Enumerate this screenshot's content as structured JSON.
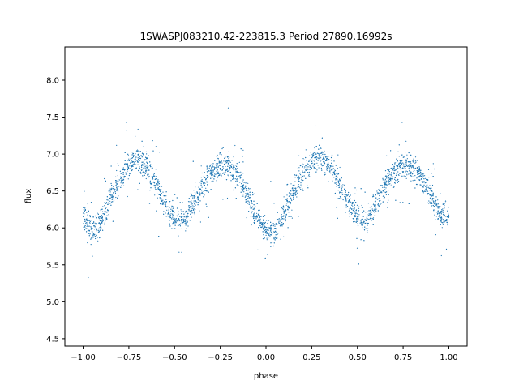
{
  "chart_data": {
    "type": "scatter",
    "title": "1SWASPJ083210.42-223815.3 Period 27890.16992s",
    "xlabel": "phase",
    "ylabel": "flux",
    "xlim": [
      -1.1,
      1.1
    ],
    "ylim": [
      4.4,
      8.45
    ],
    "xticks": [
      -1.0,
      -0.75,
      -0.5,
      -0.25,
      0.0,
      0.25,
      0.5,
      0.75,
      1.0
    ],
    "xtick_labels": [
      "−1.00",
      "−0.75",
      "−0.50",
      "−0.25",
      "0.00",
      "0.25",
      "0.50",
      "0.75",
      "1.00"
    ],
    "yticks": [
      4.5,
      5.0,
      5.5,
      6.0,
      6.5,
      7.0,
      7.5,
      8.0
    ],
    "ytick_labels": [
      "4.5",
      "5.0",
      "5.5",
      "6.0",
      "6.5",
      "7.0",
      "7.5",
      "8.0"
    ],
    "grid": false,
    "marker_color": "#1f77b4",
    "series": [
      {
        "x": [
          -1.0,
          -0.95,
          -0.9,
          -0.85,
          -0.8,
          -0.75,
          -0.7,
          -0.65,
          -0.6,
          -0.55,
          -0.5,
          -0.45,
          -0.4,
          -0.35,
          -0.3,
          -0.25,
          -0.2,
          -0.15,
          -0.1,
          -0.05,
          0.0,
          0.05,
          0.1,
          0.15,
          0.2,
          0.25,
          0.3,
          0.35,
          0.4,
          0.45,
          0.5,
          0.55,
          0.6,
          0.65,
          0.7,
          0.75,
          0.8,
          0.85,
          0.9,
          0.95,
          1.0
        ],
        "y": [
          6.2,
          5.95,
          6.1,
          6.4,
          6.65,
          6.85,
          6.95,
          6.85,
          6.6,
          6.3,
          6.1,
          6.1,
          6.3,
          6.55,
          6.75,
          6.85,
          6.85,
          6.7,
          6.45,
          6.15,
          5.95,
          5.95,
          6.2,
          6.5,
          6.75,
          6.9,
          6.95,
          6.85,
          6.6,
          6.35,
          6.15,
          6.1,
          6.3,
          6.55,
          6.75,
          6.85,
          6.85,
          6.7,
          6.45,
          6.2,
          6.15
        ]
      }
    ]
  }
}
